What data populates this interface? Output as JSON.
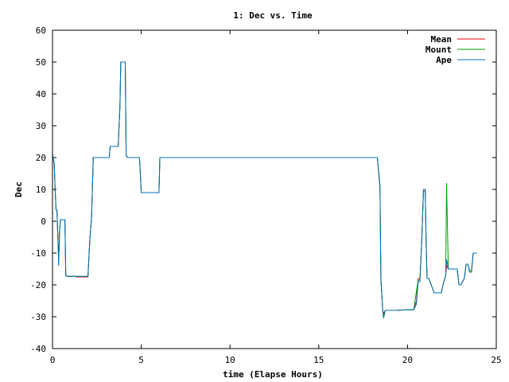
{
  "chart_data": {
    "type": "line",
    "title": "1: Dec vs. Time",
    "xlabel": "time (Elapse Hours)",
    "ylabel": "Dec",
    "xlim": [
      0,
      25
    ],
    "ylim": [
      -40,
      60
    ],
    "xticks": [
      0,
      5,
      10,
      15,
      20,
      25
    ],
    "yticks": [
      -40,
      -30,
      -20,
      -10,
      0,
      10,
      20,
      30,
      40,
      50,
      60
    ],
    "grid": false,
    "legend_position": "top-right",
    "series": [
      {
        "name": "Mean",
        "color": "#ff0000",
        "x": [
          0,
          0.1,
          0.15,
          0.2,
          0.25,
          0.35,
          0.4,
          0.45,
          0.5,
          0.7,
          0.75,
          0.8,
          1.3,
          1.35,
          1.9,
          2.0,
          2.1,
          2.2,
          2.3,
          3.2,
          3.25,
          3.7,
          3.8,
          3.85,
          3.95,
          4.0,
          4.1,
          4.15,
          4.25,
          4.3,
          4.9,
          5.0,
          6.0,
          6.05,
          6.1,
          18.3,
          18.45,
          18.5,
          18.6,
          18.65,
          18.75,
          19.3,
          19.35,
          20.0,
          20.2,
          20.35,
          20.5,
          20.6,
          20.7,
          20.8,
          20.9,
          21.0,
          21.05,
          21.1,
          21.2,
          21.5,
          21.6,
          21.9,
          22.0,
          22.1,
          22.15,
          22.2,
          22.3,
          22.4,
          22.8,
          22.9,
          23.0,
          23.2,
          23.3,
          23.4,
          23.5,
          23.6,
          23.7,
          23.9
        ],
        "y": [
          21,
          18,
          10,
          3.5,
          3.5,
          -12,
          -3,
          0.5,
          0.5,
          0.5,
          -17,
          -17.3,
          -17.3,
          -17.5,
          -17.5,
          -17.5,
          -6,
          1,
          20,
          20,
          23.5,
          23.5,
          36,
          50,
          50,
          50,
          50,
          20.5,
          20,
          20,
          20,
          9,
          9,
          20,
          20,
          20,
          10,
          -18,
          -28,
          -29,
          -28,
          -28,
          -28,
          -27.8,
          -27.8,
          -27.8,
          -25,
          -18,
          -18,
          -6,
          9.5,
          9.5,
          -7,
          -18,
          -18,
          -22.5,
          -22.5,
          -22.5,
          -20,
          -18,
          -17,
          -14,
          -15,
          -15,
          -15,
          -20,
          -20,
          -18,
          -13.5,
          -13.5,
          -16,
          -16,
          -10,
          -10
        ]
      },
      {
        "name": "Mount",
        "color": "#00a000",
        "x": [
          0,
          0.1,
          0.15,
          0.2,
          0.25,
          0.35,
          0.4,
          0.45,
          0.5,
          0.7,
          0.75,
          0.8,
          1.3,
          1.35,
          1.9,
          2.0,
          2.1,
          2.2,
          2.3,
          3.2,
          3.25,
          3.7,
          3.8,
          3.85,
          3.95,
          4.0,
          4.1,
          4.15,
          4.25,
          4.3,
          4.9,
          5.0,
          6.0,
          6.05,
          6.1,
          18.3,
          18.45,
          18.5,
          18.6,
          18.65,
          18.75,
          19.3,
          19.35,
          20.0,
          20.2,
          20.35,
          20.5,
          20.6,
          20.7,
          20.8,
          20.9,
          21.0,
          21.05,
          21.1,
          21.2,
          21.5,
          21.6,
          21.9,
          22.0,
          22.1,
          22.15,
          22.2,
          22.3,
          22.4,
          22.8,
          22.9,
          23.0,
          23.2,
          23.3,
          23.4,
          23.5,
          23.6,
          23.7,
          23.9
        ],
        "y": [
          21,
          18,
          10,
          3.5,
          3.5,
          -12,
          -3,
          0.5,
          0.5,
          0.5,
          -17,
          -17.3,
          -17.3,
          -17.3,
          -17.3,
          -17.3,
          -6,
          1,
          20,
          20,
          23.5,
          23.5,
          36,
          50,
          50,
          50,
          50,
          20.5,
          20,
          20,
          20,
          9,
          9,
          20,
          20,
          20,
          11,
          -18,
          -28,
          -30.5,
          -28,
          -28,
          -28,
          -27.8,
          -27.8,
          -27.8,
          -22,
          -18.5,
          -18.5,
          -6,
          10,
          10,
          -7,
          -18,
          -18,
          -22.5,
          -22.5,
          -22.5,
          -20,
          -18,
          -17,
          12,
          -15,
          -15,
          -15,
          -20,
          -20,
          -18,
          -13.5,
          -13.5,
          -16,
          -16,
          -10,
          -10
        ]
      },
      {
        "name": "Ape",
        "color": "#0070c0",
        "x": [
          0,
          0.1,
          0.15,
          0.2,
          0.25,
          0.35,
          0.4,
          0.45,
          0.5,
          0.7,
          0.75,
          0.8,
          1.3,
          1.35,
          1.9,
          2.0,
          2.1,
          2.2,
          2.3,
          3.2,
          3.25,
          3.7,
          3.8,
          3.85,
          3.95,
          4.0,
          4.1,
          4.15,
          4.25,
          4.3,
          4.9,
          5.0,
          6.0,
          6.05,
          6.1,
          18.3,
          18.45,
          18.5,
          18.6,
          18.65,
          18.75,
          19.3,
          19.35,
          20.0,
          20.2,
          20.35,
          20.5,
          20.6,
          20.7,
          20.8,
          20.9,
          21.0,
          21.05,
          21.1,
          21.2,
          21.5,
          21.6,
          21.9,
          22.0,
          22.1,
          22.15,
          22.2,
          22.3,
          22.4,
          22.8,
          22.9,
          23.0,
          23.2,
          23.3,
          23.4,
          23.5,
          23.6,
          23.7,
          23.9
        ],
        "y": [
          21,
          18,
          10,
          3.5,
          3.5,
          -14,
          -3,
          0.5,
          0.5,
          0.5,
          -17,
          -17.3,
          -17.3,
          -17.3,
          -17.3,
          -17.3,
          -6,
          1,
          20,
          20,
          23.5,
          23.5,
          36,
          50,
          50,
          50,
          50,
          20.5,
          20,
          20,
          20,
          9,
          9,
          20,
          20,
          20,
          11,
          -18,
          -28,
          -30,
          -28,
          -28,
          -28,
          -27.8,
          -27.8,
          -27.8,
          -26,
          -19,
          -19,
          -6,
          10,
          10,
          -7,
          -18,
          -18,
          -22.5,
          -22.5,
          -22.5,
          -20,
          -18,
          -17,
          -12,
          -15,
          -15,
          -15,
          -20,
          -20,
          -18,
          -13.5,
          -13.5,
          -15.5,
          -15.5,
          -10,
          -10
        ]
      }
    ]
  }
}
